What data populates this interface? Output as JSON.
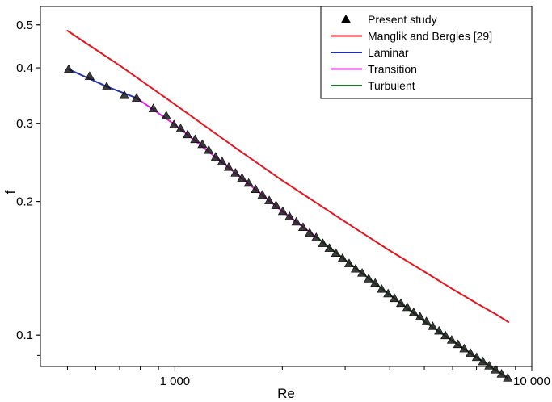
{
  "chart_data": {
    "type": "line",
    "xlabel": "Re",
    "ylabel": "f",
    "xscale": "log",
    "yscale": "log",
    "xlim": [
      420,
      10000
    ],
    "ylim": [
      0.085,
      0.55
    ],
    "x_ticks": [
      {
        "value": 1000,
        "label": "1 000"
      },
      {
        "value": 10000,
        "label": "10 000"
      }
    ],
    "y_ticks": [
      {
        "value": 0.1,
        "label": "0.1"
      },
      {
        "value": 0.2,
        "label": "0.2"
      },
      {
        "value": 0.3,
        "label": "0.3"
      },
      {
        "value": 0.4,
        "label": "0.4"
      },
      {
        "value": 0.5,
        "label": "0.5"
      }
    ],
    "legend_position": "top-right",
    "series": [
      {
        "name": "Present study",
        "kind": "marker",
        "color": "#000000",
        "fill": "#1a1a1a",
        "x": [
          504,
          577,
          644,
          722,
          781,
          870,
          946,
          994,
          1038,
          1085,
          1139,
          1194,
          1244,
          1301,
          1356,
          1415,
          1478,
          1542,
          1610,
          1683,
          1759,
          1838,
          1920,
          2006,
          2096,
          2189,
          2286,
          2385,
          2489,
          2597,
          2709,
          2826,
          2949,
          3077,
          3209,
          3347,
          3491,
          3641,
          3796,
          3957,
          4124,
          4298,
          4479,
          4667,
          4863,
          5066,
          5276,
          5497,
          5726,
          5964,
          6211,
          6467,
          6733,
          7010,
          7297,
          7596,
          7906,
          8227,
          8563
        ],
        "y": [
          0.397,
          0.383,
          0.363,
          0.347,
          0.342,
          0.324,
          0.312,
          0.298,
          0.292,
          0.283,
          0.276,
          0.269,
          0.261,
          0.252,
          0.246,
          0.239,
          0.232,
          0.226,
          0.22,
          0.213,
          0.207,
          0.201,
          0.196,
          0.19,
          0.185,
          0.18,
          0.175,
          0.17,
          0.166,
          0.161,
          0.157,
          0.153,
          0.149,
          0.145,
          0.141,
          0.138,
          0.134,
          0.131,
          0.127,
          0.124,
          0.121,
          0.118,
          0.1155,
          0.1125,
          0.11,
          0.1073,
          0.1047,
          0.1022,
          0.0998,
          0.0975,
          0.0953,
          0.0932,
          0.0911,
          0.0891,
          0.0872,
          0.0853,
          0.0835,
          0.0818,
          0.0801
        ]
      },
      {
        "name": "Manglik and Bergles [29]",
        "kind": "line",
        "color": "#e8141c",
        "x": [
          500,
          700,
          1000,
          1500,
          2000,
          3000,
          4000,
          5000,
          6000,
          7000,
          8000,
          8600
        ],
        "y": [
          0.485,
          0.405,
          0.331,
          0.262,
          0.223,
          0.18,
          0.155,
          0.139,
          0.127,
          0.118,
          0.111,
          0.107
        ]
      },
      {
        "name": "Laminar",
        "kind": "line",
        "color": "#1f2fb4",
        "x": [
          504,
          644,
          781
        ],
        "y": [
          0.397,
          0.363,
          0.342
        ]
      },
      {
        "name": "Transition",
        "kind": "line",
        "color": "#e020e0",
        "x": [
          781,
          1000,
          1400,
          2000,
          2500
        ],
        "y": [
          0.342,
          0.298,
          0.24,
          0.19,
          0.166
        ]
      },
      {
        "name": "Turbulent",
        "kind": "line",
        "color": "#1c7a28",
        "x": [
          2500,
          3500,
          5000,
          7000,
          8563
        ],
        "y": [
          0.166,
          0.134,
          0.1073,
          0.0891,
          0.0801
        ]
      }
    ]
  }
}
